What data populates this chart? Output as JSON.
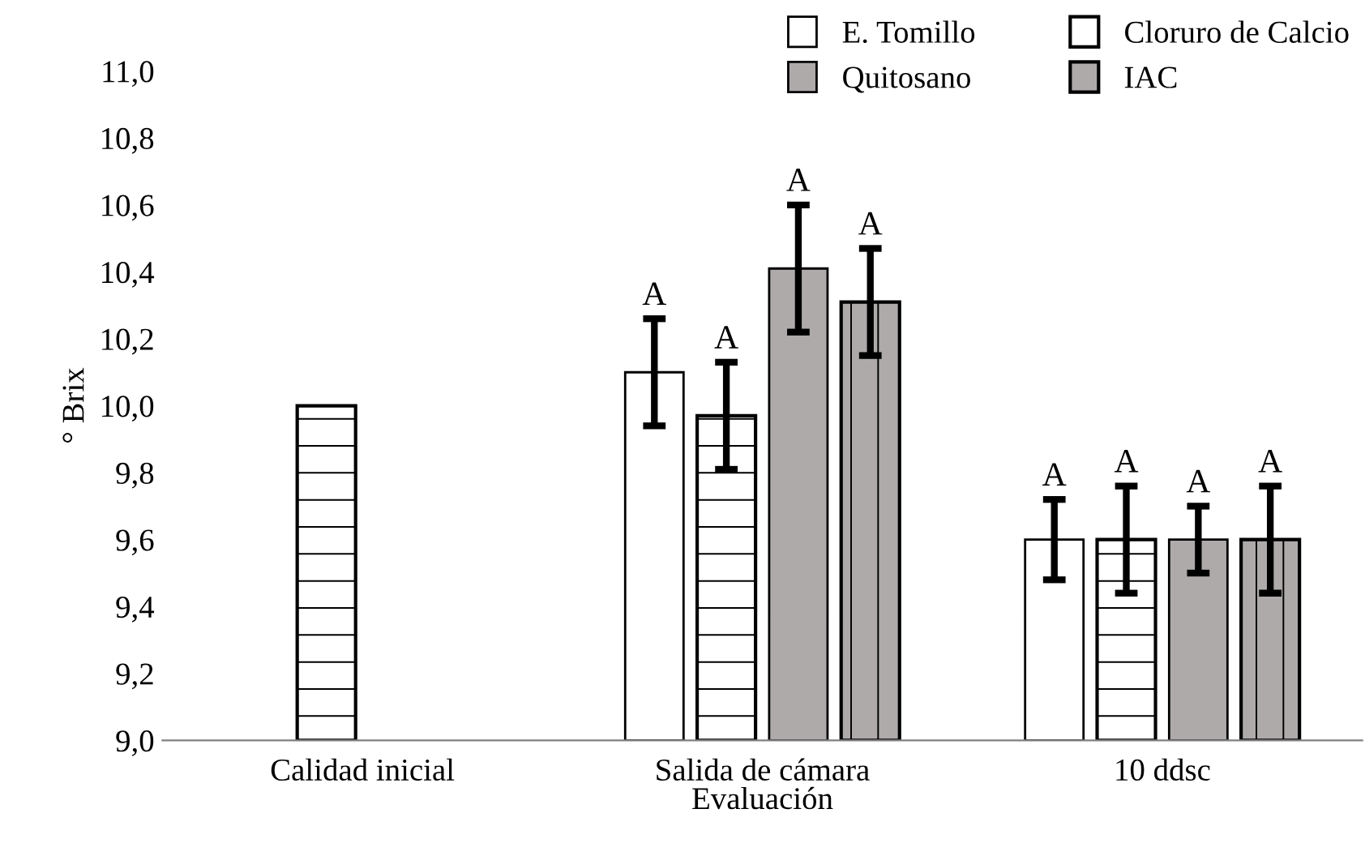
{
  "chart_data": {
    "type": "bar",
    "xlabel": "Evaluación",
    "ylabel": "° Brix",
    "categories": [
      "Calidad inicial",
      "Salida de cámara",
      "10 ddsc"
    ],
    "series": [
      {
        "name": "E. Tomillo",
        "color": "#ffffff",
        "values": [
          null,
          10.1,
          9.6
        ],
        "errors": [
          null,
          0.16,
          0.12
        ],
        "value_labels": [
          null,
          "A",
          "A"
        ]
      },
      {
        "name": "Cloruro de Calcio",
        "color": "#ffffff",
        "values": [
          10.0,
          9.97,
          9.6
        ],
        "errors": [
          null,
          0.16,
          0.16
        ],
        "value_labels": [
          null,
          "A",
          "A"
        ]
      },
      {
        "name": "Quitosano",
        "color": "#aeaaaa",
        "values": [
          null,
          10.41,
          9.6
        ],
        "errors": [
          null,
          0.19,
          0.1
        ],
        "value_labels": [
          null,
          "A",
          "A"
        ]
      },
      {
        "name": "IAC",
        "color": "#aeaaaa",
        "values": [
          null,
          10.31,
          9.6
        ],
        "errors": [
          null,
          0.16,
          0.16
        ],
        "value_labels": [
          null,
          "A",
          "A"
        ]
      }
    ],
    "ylim": [
      9.0,
      11.0
    ],
    "yticks": [
      {
        "value": 9.0,
        "label": "9,0"
      },
      {
        "value": 9.2,
        "label": "9,2"
      },
      {
        "value": 9.4,
        "label": "9,4"
      },
      {
        "value": 9.6,
        "label": "9,6"
      },
      {
        "value": 9.8,
        "label": "9,8"
      },
      {
        "value": 10.0,
        "label": "10,0"
      },
      {
        "value": 10.2,
        "label": "10,2"
      },
      {
        "value": 10.4,
        "label": "10,4"
      },
      {
        "value": 10.6,
        "label": "10,6"
      },
      {
        "value": 10.8,
        "label": "10,8"
      },
      {
        "value": 11.0,
        "label": "11,0"
      }
    ],
    "grid": false,
    "legend": "top right"
  }
}
